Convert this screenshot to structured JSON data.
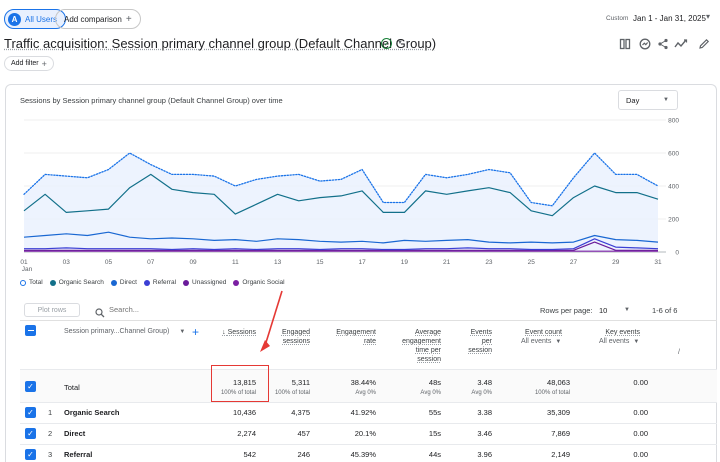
{
  "top_bar": {
    "users_chip": {
      "avatar_letter": "A",
      "label": "All Users"
    },
    "add_comparison": {
      "label": "Add comparison"
    },
    "date": {
      "custom_label": "Custom",
      "range": "Jan 1 - Jan 31, 2025"
    }
  },
  "header": {
    "title": "Traffic acquisition: Session primary channel group (Default Channel Group)",
    "add_filter": "Add filter"
  },
  "chart": {
    "title": "Sessions by Session primary channel group (Default Channel Group) over time",
    "granularity": "Day",
    "y_ticks": [
      "800",
      "600",
      "400",
      "200",
      "0"
    ],
    "x_ticks": [
      "01",
      "Jan",
      "03",
      "05",
      "07",
      "09",
      "11",
      "13",
      "15",
      "17",
      "19",
      "21",
      "23",
      "25",
      "27",
      "29",
      "31"
    ],
    "legend": [
      "Total",
      "Organic Search",
      "Direct",
      "Referral",
      "Unassigned",
      "Organic Social"
    ]
  },
  "chart_data": {
    "type": "line",
    "x": [
      1,
      2,
      3,
      4,
      5,
      6,
      7,
      8,
      9,
      10,
      11,
      12,
      13,
      14,
      15,
      16,
      17,
      18,
      19,
      20,
      21,
      22,
      23,
      24,
      25,
      26,
      27,
      28,
      29,
      30,
      31
    ],
    "x_ticks": [
      "01 Jan",
      "03",
      "05",
      "07",
      "09",
      "11",
      "13",
      "15",
      "17",
      "19",
      "21",
      "23",
      "25",
      "27",
      "29",
      "31"
    ],
    "ylim": [
      0,
      800
    ],
    "y_ticks": [
      0,
      200,
      400,
      600,
      800
    ],
    "series": [
      {
        "name": "Total",
        "color": "#1a73e8",
        "style": "dotted",
        "values": [
          350,
          470,
          460,
          450,
          500,
          600,
          530,
          470,
          470,
          460,
          400,
          440,
          460,
          470,
          430,
          440,
          500,
          300,
          300,
          470,
          450,
          470,
          500,
          480,
          300,
          280,
          450,
          600,
          470,
          470,
          400
        ]
      },
      {
        "name": "Organic Search",
        "color": "#12708a",
        "values": [
          250,
          350,
          240,
          250,
          260,
          390,
          470,
          380,
          360,
          350,
          230,
          290,
          350,
          310,
          330,
          340,
          370,
          240,
          240,
          370,
          350,
          370,
          390,
          360,
          250,
          220,
          330,
          400,
          360,
          360,
          320
        ]
      },
      {
        "name": "Direct",
        "color": "#1967d2",
        "values": [
          90,
          100,
          110,
          100,
          120,
          90,
          80,
          85,
          80,
          70,
          75,
          65,
          80,
          75,
          65,
          60,
          65,
          55,
          70,
          65,
          70,
          75,
          60,
          55,
          60,
          55,
          60,
          100,
          75,
          70,
          60
        ]
      },
      {
        "name": "Referral",
        "color": "#3b3fd4",
        "values": [
          20,
          20,
          25,
          20,
          20,
          20,
          20,
          15,
          20,
          15,
          20,
          15,
          20,
          20,
          15,
          20,
          20,
          15,
          15,
          20,
          20,
          25,
          20,
          20,
          15,
          15,
          20,
          80,
          30,
          25,
          20
        ]
      },
      {
        "name": "Unassigned",
        "color": "#6a1b9a",
        "values": [
          10,
          10,
          10,
          10,
          10,
          10,
          10,
          10,
          10,
          10,
          10,
          10,
          10,
          10,
          10,
          10,
          10,
          10,
          10,
          10,
          10,
          10,
          10,
          10,
          10,
          10,
          10,
          60,
          10,
          10,
          10
        ]
      },
      {
        "name": "Organic Social",
        "color": "#7b1fa2",
        "values": [
          5,
          5,
          5,
          5,
          5,
          5,
          5,
          5,
          5,
          5,
          5,
          5,
          5,
          5,
          5,
          5,
          5,
          5,
          5,
          5,
          5,
          5,
          5,
          5,
          5,
          5,
          5,
          5,
          5,
          5,
          5
        ]
      }
    ]
  },
  "table": {
    "plot_rows": "Plot rows",
    "search_placeholder": "Search...",
    "rows_per_page_label": "Rows per page:",
    "rows_per_page_value": "10",
    "range": "1-6 of 6",
    "dimension_header": "Session primary...Channel Group)",
    "headers": {
      "sessions": "Sessions",
      "engaged_sessions": [
        "Engaged",
        "sessions"
      ],
      "engagement_rate": [
        "Engagement",
        "rate"
      ],
      "avg_engagement_time": [
        "Average",
        "engagement",
        "time per",
        "session"
      ],
      "events_per_session": [
        "Events",
        "per",
        "session"
      ],
      "event_count": "Event count",
      "key_events": "Key events",
      "all_events": "All events"
    },
    "total": {
      "label": "Total",
      "sessions": "13,815",
      "sessions_sub": "100% of total",
      "engaged": "5,311",
      "engaged_sub": "100% of total",
      "rate": "38.44%",
      "rate_sub": "Avg 0%",
      "time": "48s",
      "time_sub": "Avg 0%",
      "eps": "3.48",
      "eps_sub": "Avg 0%",
      "events": "48,063",
      "events_sub": "100% of total",
      "key": "0.00"
    },
    "rows": [
      {
        "rank": "1",
        "channel": "Organic Search",
        "sessions": "10,436",
        "engaged": "4,375",
        "rate": "41.92%",
        "time": "55s",
        "eps": "3.38",
        "events": "35,309",
        "key": "0.00"
      },
      {
        "rank": "2",
        "channel": "Direct",
        "sessions": "2,274",
        "engaged": "457",
        "rate": "20.1%",
        "time": "15s",
        "eps": "3.46",
        "events": "7,869",
        "key": "0.00"
      },
      {
        "rank": "3",
        "channel": "Referral",
        "sessions": "542",
        "engaged": "246",
        "rate": "45.39%",
        "time": "44s",
        "eps": "3.96",
        "events": "2,149",
        "key": "0.00"
      }
    ]
  },
  "colors": {
    "accent": "#1a73e8",
    "annotation": "#e53935"
  }
}
